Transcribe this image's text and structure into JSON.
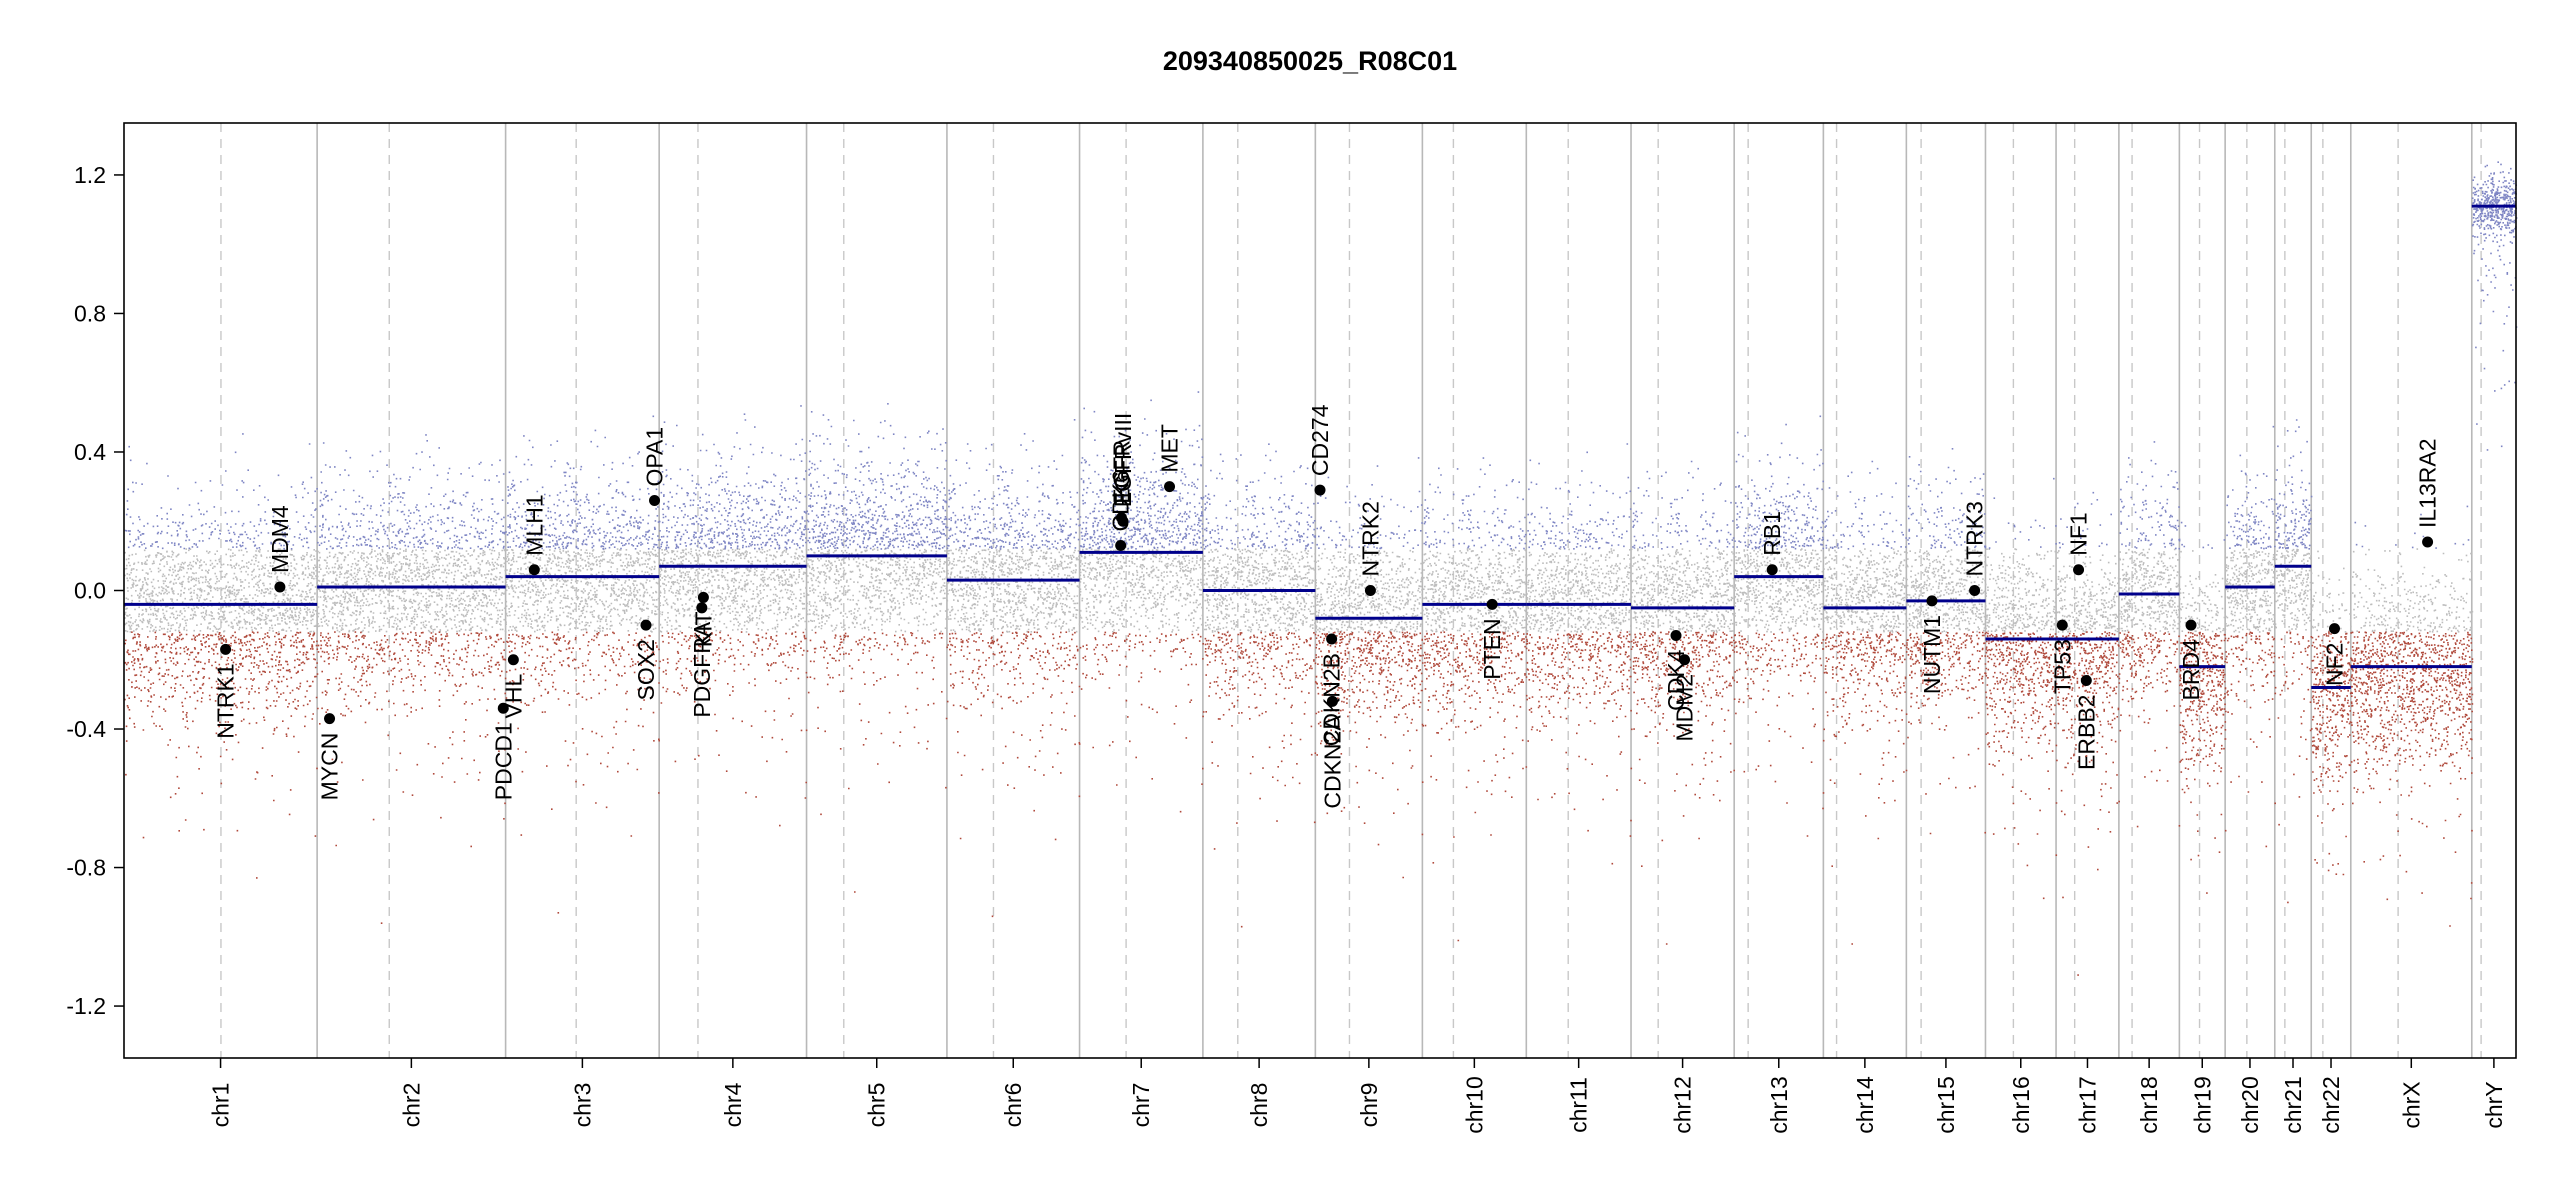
{
  "chart_data": {
    "type": "scatter",
    "title": "209340850025_R08C01",
    "xlabel": "",
    "ylabel": "",
    "ylim": [
      -1.35,
      1.35
    ],
    "yticks": [
      -1.2,
      -0.8,
      -0.4,
      0.0,
      0.4,
      0.8,
      1.2
    ],
    "ytick_labels": [
      "-1.2",
      "-0.8",
      "-0.4",
      "0.0",
      "0.4",
      "0.8",
      "1.2"
    ],
    "grid": "chromosome boundaries (solid) and centromeres (dashed)",
    "colors": {
      "gain_points": "#7f86c4",
      "loss_points": "#b04a3c",
      "neutral_points": "#bdbdbd",
      "segment": "#00008b",
      "gene_marker": "#000000",
      "axis": "#000000",
      "boundary": "#b8b8b8"
    },
    "chromosomes": [
      {
        "name": "chr1",
        "start": 0,
        "end": 249,
        "centromere": 125,
        "segment": -0.04
      },
      {
        "name": "chr2",
        "start": 249,
        "end": 492,
        "centromere": 342,
        "segment": 0.01
      },
      {
        "name": "chr3",
        "start": 492,
        "end": 690,
        "centromere": 583,
        "segment": 0.04
      },
      {
        "name": "chr4",
        "start": 690,
        "end": 880,
        "centromere": 740,
        "segment": 0.07
      },
      {
        "name": "chr5",
        "start": 880,
        "end": 1061,
        "centromere": 928,
        "segment": 0.1
      },
      {
        "name": "chr6",
        "start": 1061,
        "end": 1232,
        "centromere": 1121,
        "segment": 0.03
      },
      {
        "name": "chr7",
        "start": 1232,
        "end": 1391,
        "centromere": 1292,
        "segment": 0.11
      },
      {
        "name": "chr8",
        "start": 1391,
        "end": 1536,
        "centromere": 1436,
        "segment": 0.0
      },
      {
        "name": "chr9",
        "start": 1536,
        "end": 1674,
        "centromere": 1580,
        "segment": -0.08
      },
      {
        "name": "chr10",
        "start": 1674,
        "end": 1808,
        "centromere": 1714,
        "segment": -0.04
      },
      {
        "name": "chr11",
        "start": 1808,
        "end": 1943,
        "centromere": 1862,
        "segment": -0.04
      },
      {
        "name": "chr12",
        "start": 1943,
        "end": 2076,
        "centromere": 1978,
        "segment": -0.05
      },
      {
        "name": "chr13",
        "start": 2076,
        "end": 2191,
        "centromere": 2094,
        "segment": 0.04
      },
      {
        "name": "chr14",
        "start": 2191,
        "end": 2298,
        "centromere": 2208,
        "segment": -0.05
      },
      {
        "name": "chr15",
        "start": 2298,
        "end": 2400,
        "centromere": 2317,
        "segment": -0.03
      },
      {
        "name": "chr16",
        "start": 2400,
        "end": 2491,
        "centromere": 2436,
        "segment": -0.14
      },
      {
        "name": "chr17",
        "start": 2491,
        "end": 2572,
        "centromere": 2515,
        "segment": -0.14
      },
      {
        "name": "chr18",
        "start": 2572,
        "end": 2650,
        "centromere": 2589,
        "segment": -0.01
      },
      {
        "name": "chr19",
        "start": 2650,
        "end": 2709,
        "centromere": 2676,
        "segment": -0.22
      },
      {
        "name": "chr20",
        "start": 2709,
        "end": 2773,
        "centromere": 2737,
        "segment": 0.01
      },
      {
        "name": "chr21",
        "start": 2773,
        "end": 2820,
        "centromere": 2786,
        "segment": 0.07
      },
      {
        "name": "chr22",
        "start": 2820,
        "end": 2871,
        "centromere": 2835,
        "segment": -0.28
      },
      {
        "name": "chrX",
        "start": 2871,
        "end": 3027,
        "centromere": 2932,
        "segment": -0.22
      },
      {
        "name": "chrY",
        "start": 3027,
        "end": 3084,
        "centromere": 3039,
        "segment": 1.11
      }
    ],
    "genes": [
      {
        "name": "NTRK1",
        "x": 131,
        "y": -0.17,
        "label_side": "below"
      },
      {
        "name": "MDM4",
        "x": 201,
        "y": 0.01,
        "label_side": "above"
      },
      {
        "name": "MYCN",
        "x": 265,
        "y": -0.37,
        "label_side": "below"
      },
      {
        "name": "PDCD1",
        "x": 489,
        "y": -0.34,
        "label_side": "below"
      },
      {
        "name": "VHL",
        "x": 502,
        "y": -0.2,
        "label_side": "below"
      },
      {
        "name": "MLH1",
        "x": 529,
        "y": 0.06,
        "label_side": "above"
      },
      {
        "name": "SOX2",
        "x": 673,
        "y": -0.1,
        "label_side": "below"
      },
      {
        "name": "OPA1",
        "x": 684,
        "y": 0.26,
        "label_side": "above"
      },
      {
        "name": "PDGFRA",
        "x": 745,
        "y": -0.05,
        "label_side": "below"
      },
      {
        "name": "KIT",
        "x": 747,
        "y": -0.02,
        "label_side": "below"
      },
      {
        "name": "EGFR",
        "x": 1286,
        "y": 0.21,
        "label_side": "above"
      },
      {
        "name": "EGFRvIII",
        "x": 1288,
        "y": 0.2,
        "label_side": "above"
      },
      {
        "name": "CDK6",
        "x": 1285,
        "y": 0.13,
        "label_side": "above"
      },
      {
        "name": "MET",
        "x": 1348,
        "y": 0.3,
        "label_side": "above"
      },
      {
        "name": "CDKN2A",
        "x": 1558,
        "y": -0.32,
        "label_side": "below"
      },
      {
        "name": "CDKN2B",
        "x": 1557,
        "y": -0.14,
        "label_side": "below"
      },
      {
        "name": "CD274",
        "x": 1542,
        "y": 0.29,
        "label_side": "above"
      },
      {
        "name": "NTRK2",
        "x": 1607,
        "y": 0.0,
        "label_side": "above"
      },
      {
        "name": "PTEN",
        "x": 1764,
        "y": -0.04,
        "label_side": "below"
      },
      {
        "name": "CDK4",
        "x": 2001,
        "y": -0.13,
        "label_side": "below"
      },
      {
        "name": "MDM2",
        "x": 2012,
        "y": -0.2,
        "label_side": "below"
      },
      {
        "name": "RB1",
        "x": 2125,
        "y": 0.06,
        "label_side": "above"
      },
      {
        "name": "NUTM1",
        "x": 2331,
        "y": -0.03,
        "label_side": "below"
      },
      {
        "name": "NTRK3",
        "x": 2386,
        "y": 0.0,
        "label_side": "above"
      },
      {
        "name": "TP53",
        "x": 2499,
        "y": -0.1,
        "label_side": "below"
      },
      {
        "name": "NF1",
        "x": 2520,
        "y": 0.06,
        "label_side": "above"
      },
      {
        "name": "ERBB2",
        "x": 2530,
        "y": -0.26,
        "label_side": "below"
      },
      {
        "name": "BRD4",
        "x": 2665,
        "y": -0.1,
        "label_side": "below"
      },
      {
        "name": "NF2",
        "x": 2850,
        "y": -0.11,
        "label_side": "below"
      },
      {
        "name": "IL13RA2",
        "x": 2970,
        "y": 0.14,
        "label_side": "above"
      }
    ],
    "point_density": {
      "note": "per-probe log2 ratio scatter rendered procedurally around each chromosome segment value",
      "noise_sd": 0.14
    }
  }
}
